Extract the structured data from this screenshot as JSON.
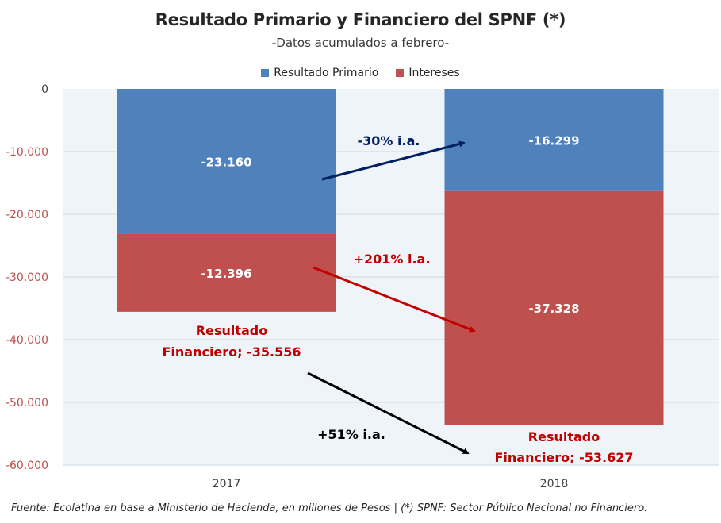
{
  "chart_data": {
    "type": "bar",
    "stacked": true,
    "title": "Resultado Primario y Financiero del SPNF (*)",
    "subtitle": "-Datos acumulados a febrero-",
    "categories": [
      "2017",
      "2018"
    ],
    "series": [
      {
        "name": "Resultado Primario",
        "color": "#4f81bd",
        "values": [
          -23160,
          -16299
        ],
        "labels": [
          "-23.160",
          "-16.299"
        ]
      },
      {
        "name": "Intereses",
        "color": "#c0504d",
        "values": [
          -12396,
          -37328
        ],
        "labels": [
          "-12.396",
          "-37.328"
        ]
      }
    ],
    "totals": {
      "label_line1": "Resultado",
      "values": [
        -35556,
        -53627
      ],
      "labels": [
        "Financiero; -35.556",
        "Financiero; -53.627"
      ],
      "color": "#c00000"
    },
    "annotations": [
      {
        "text": "-30% i.a.",
        "color": "#002060"
      },
      {
        "text": "+201% i.a.",
        "color": "#c00000"
      },
      {
        "text": "+51% i.a.",
        "color": "#000000"
      }
    ],
    "ylim": [
      -60000,
      0
    ],
    "yticks": [
      0,
      -10000,
      -20000,
      -30000,
      -40000,
      -50000,
      -60000
    ],
    "ytick_labels": [
      "0",
      "-10.000",
      "-20.000",
      "-30.000",
      "-40.000",
      "-50.000",
      "-60.000"
    ],
    "ytick_colors": {
      "zero": "#404040",
      "negative": "#c0504d"
    },
    "grid": true,
    "legend_position": "top-center",
    "xlabel": "",
    "ylabel": ""
  },
  "footer": "Fuente: Ecolatina en base a Ministerio de Hacienda, en millones de Pesos | (*) SPNF: Sector Público Nacional no Financiero.",
  "colors": {
    "plot_background": "#eef4f8",
    "gridline": "#d9e2ea"
  }
}
